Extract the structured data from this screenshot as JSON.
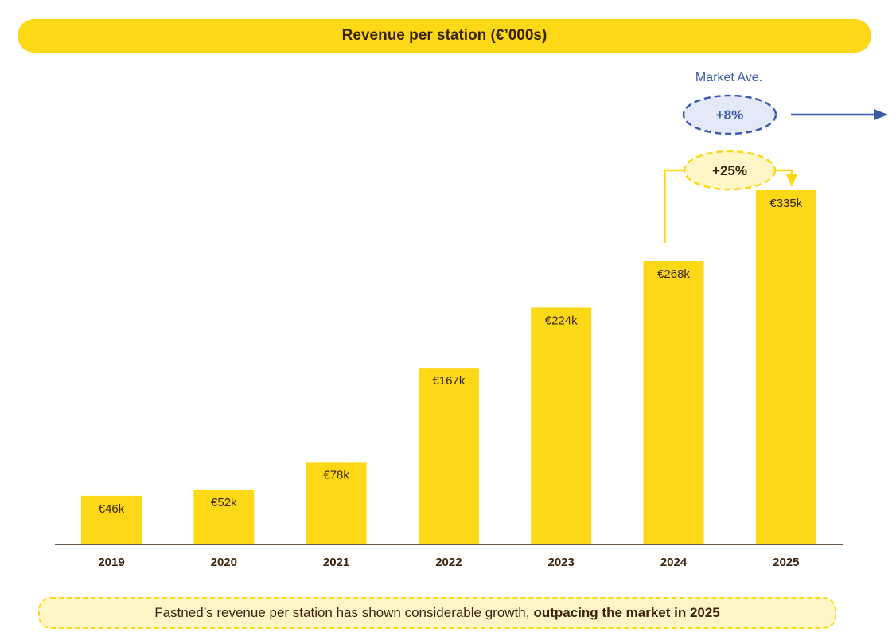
{
  "chart_data": {
    "type": "bar",
    "title": "Revenue per station (€’000s)",
    "categories": [
      "2019",
      "2020",
      "2021",
      "2022",
      "2023",
      "2024",
      "2025"
    ],
    "values": [
      46,
      52,
      78,
      167,
      224,
      268,
      335
    ],
    "data_labels": [
      "€46k",
      "€52k",
      "€78k",
      "€167k",
      "€224k",
      "€268k",
      "€335k"
    ],
    "xlabel": "",
    "ylabel": "",
    "ylim": [
      0,
      335
    ],
    "grid": false,
    "bar_color": "#FDD816",
    "annotations": {
      "market_label": "Market Ave.",
      "market_growth": "+8%",
      "market_color": "#3A5BAA",
      "growth_2024_2025": "+25%"
    }
  },
  "footer": {
    "text": "Fastned’s revenue per station has shown considerable growth,",
    "bold": "outpacing the market in 2025"
  }
}
